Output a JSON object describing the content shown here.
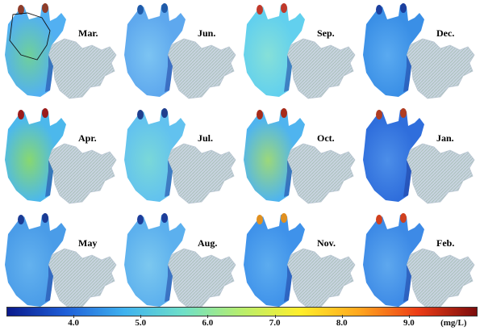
{
  "panels": [
    {
      "month": "Mar.",
      "base": "#52b0f2",
      "corner": "#8e3d2a",
      "tint": "#6fd09a",
      "outline": true
    },
    {
      "month": "Jun.",
      "base": "#5ea8ee",
      "corner": "#1f5aa8",
      "tint": "#7cc4f2",
      "outline": false
    },
    {
      "month": "Sep.",
      "base": "#62d0ee",
      "corner": "#c0392b",
      "tint": "#86e0d8",
      "outline": false
    },
    {
      "month": "Dec.",
      "base": "#3a8fe6",
      "corner": "#1c3f9e",
      "tint": "#5aaaf0",
      "outline": false
    },
    {
      "month": "Apr.",
      "base": "#4cb8ec",
      "corner": "#9b1b1b",
      "tint": "#88d870",
      "outline": false
    },
    {
      "month": "Jul.",
      "base": "#62c2ef",
      "corner": "#203f8e",
      "tint": "#7ad8d8",
      "outline": false
    },
    {
      "month": "Oct.",
      "base": "#4fb4ef",
      "corner": "#a72b1a",
      "tint": "#9cd87a",
      "outline": false
    },
    {
      "month": "Jan.",
      "base": "#2f6edc",
      "corner": "#b03d22",
      "tint": "#4c8ee8",
      "outline": false
    },
    {
      "month": "May",
      "base": "#4a9ce8",
      "corner": "#1b3b94",
      "tint": "#64b2ee",
      "outline": false
    },
    {
      "month": "Aug.",
      "base": "#5cb0ee",
      "corner": "#1d3d99",
      "tint": "#7cc8ef",
      "outline": false
    },
    {
      "month": "Nov.",
      "base": "#3f92ea",
      "corner": "#e09020",
      "tint": "#5cacef",
      "outline": false
    },
    {
      "month": "Feb.",
      "base": "#3d8ae6",
      "corner": "#d0401e",
      "tint": "#5ea8ee",
      "outline": false
    }
  ],
  "colorbar": {
    "min": 3.0,
    "max": 10.0,
    "ticks": [
      {
        "value": 4.0,
        "label": "4.0"
      },
      {
        "value": 5.0,
        "label": "5.0"
      },
      {
        "value": 6.0,
        "label": "6.0"
      },
      {
        "value": 7.0,
        "label": "7.0"
      },
      {
        "value": 8.0,
        "label": "8.0"
      },
      {
        "value": 9.0,
        "label": "9.0"
      }
    ],
    "unit": "(mg/L)",
    "colors": [
      "#0a1a8c",
      "#1f5fd8",
      "#3fb2ef",
      "#6fe0c8",
      "#b8ee6c",
      "#ffee2a",
      "#ffa61e",
      "#ec3c16",
      "#7c0c0c"
    ]
  },
  "land_color": "#c7d3df"
}
